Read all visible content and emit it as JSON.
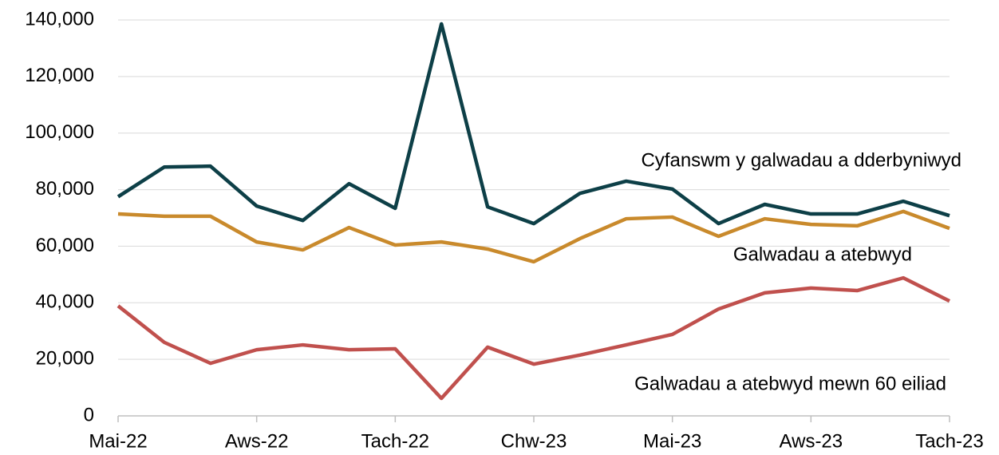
{
  "chart_data": {
    "type": "line",
    "categories": [
      "Mai-22",
      null,
      null,
      "Aws-22",
      null,
      null,
      "Tach-22",
      null,
      null,
      "Chw-23",
      null,
      null,
      "Mai-23",
      null,
      null,
      "Aws-23",
      null,
      null,
      "Tach-23"
    ],
    "series": [
      {
        "name": "Cyfanswm y galwadau a dderbyniwyd",
        "color": "#0d3f47",
        "values": [
          77500,
          88000,
          88300,
          74200,
          69100,
          82100,
          73400,
          138600,
          73900,
          68000,
          78700,
          83000,
          80200,
          68000,
          74800,
          71400,
          71400,
          75900,
          70800
        ]
      },
      {
        "name": "Galwadau a atebwyd",
        "color": "#c98a2c",
        "values": [
          71400,
          70600,
          70600,
          61500,
          58700,
          66600,
          60400,
          61500,
          59000,
          54500,
          62700,
          69700,
          70300,
          63500,
          69700,
          67700,
          67200,
          72300,
          66300
        ]
      },
      {
        "name": "Galwadau a atebwyd mewn 60 eiliad",
        "color": "#c0504d",
        "values": [
          38900,
          26000,
          18600,
          23400,
          25100,
          23400,
          23700,
          6200,
          24300,
          18300,
          21500,
          25100,
          28800,
          37800,
          43500,
          45200,
          44300,
          48800,
          40600
        ]
      }
    ],
    "ylim": [
      0,
      140000
    ],
    "yticks": [
      0,
      {
        "value": 20000,
        "label": "20,000"
      },
      {
        "value": 40000,
        "label": "40,000"
      },
      {
        "value": 60000,
        "label": "60,000"
      },
      {
        "value": 80000,
        "label": "80,000"
      },
      {
        "value": 100000,
        "label": "100,000"
      },
      {
        "value": 120000,
        "label": "120,000"
      },
      {
        "value": 140000,
        "label": "140,000"
      }
    ],
    "grid": true
  }
}
